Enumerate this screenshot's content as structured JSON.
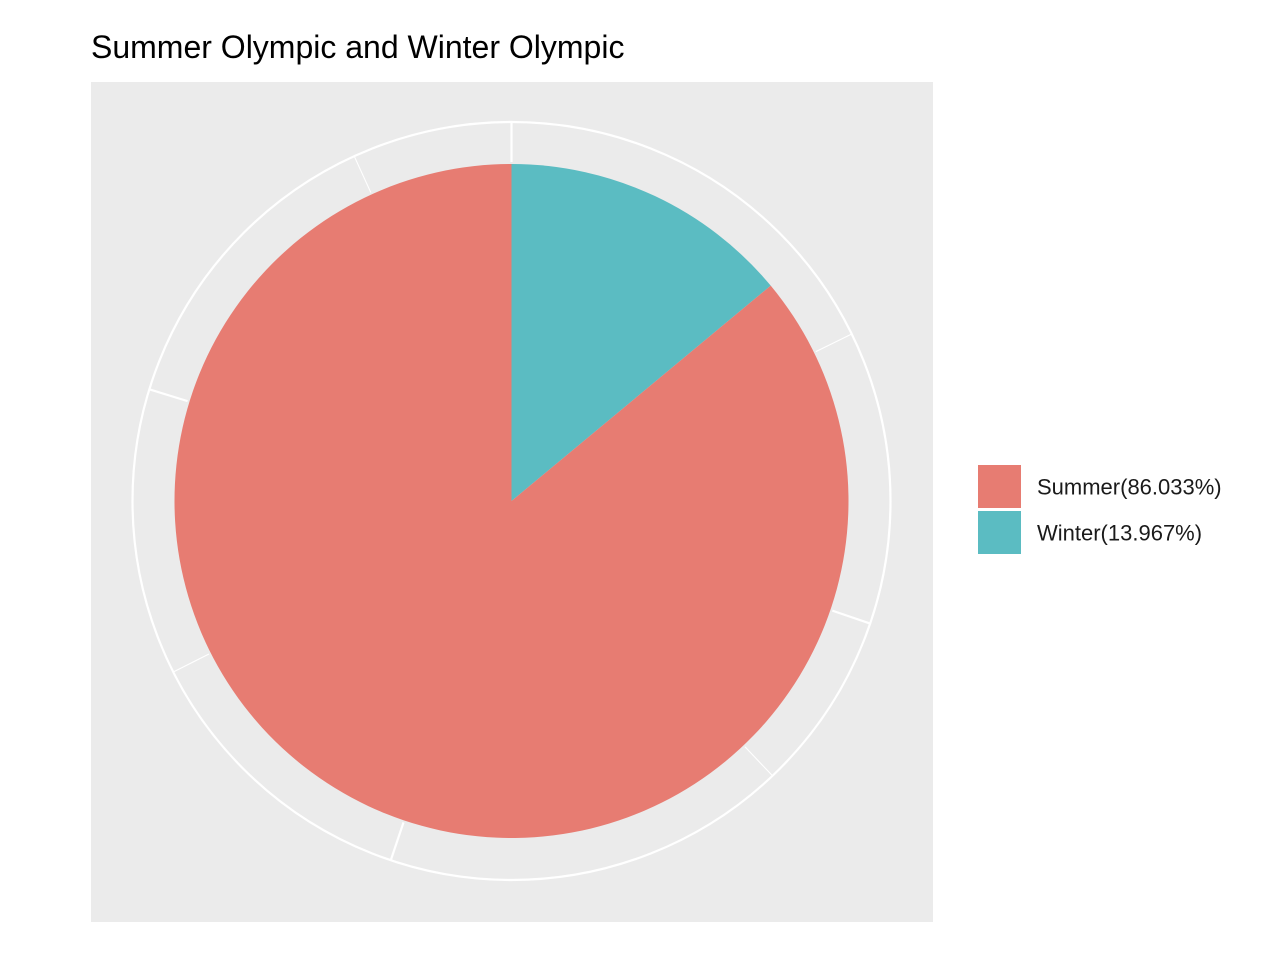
{
  "chart_data": {
    "type": "pie",
    "title": "Summer Olympic and Winter Olympic",
    "categories": [
      "Summer",
      "Winter"
    ],
    "values": [
      86.033,
      13.967
    ],
    "unit": "%",
    "legend": {
      "position": "right",
      "entries": [
        "Summer(86.033%)",
        "Winter(13.967%)"
      ]
    },
    "colors": [
      "#E77C72",
      "#5BBCC2"
    ],
    "panel_background": "#EBEBEB",
    "grid": true,
    "grid_color": "#FFFFFF"
  }
}
